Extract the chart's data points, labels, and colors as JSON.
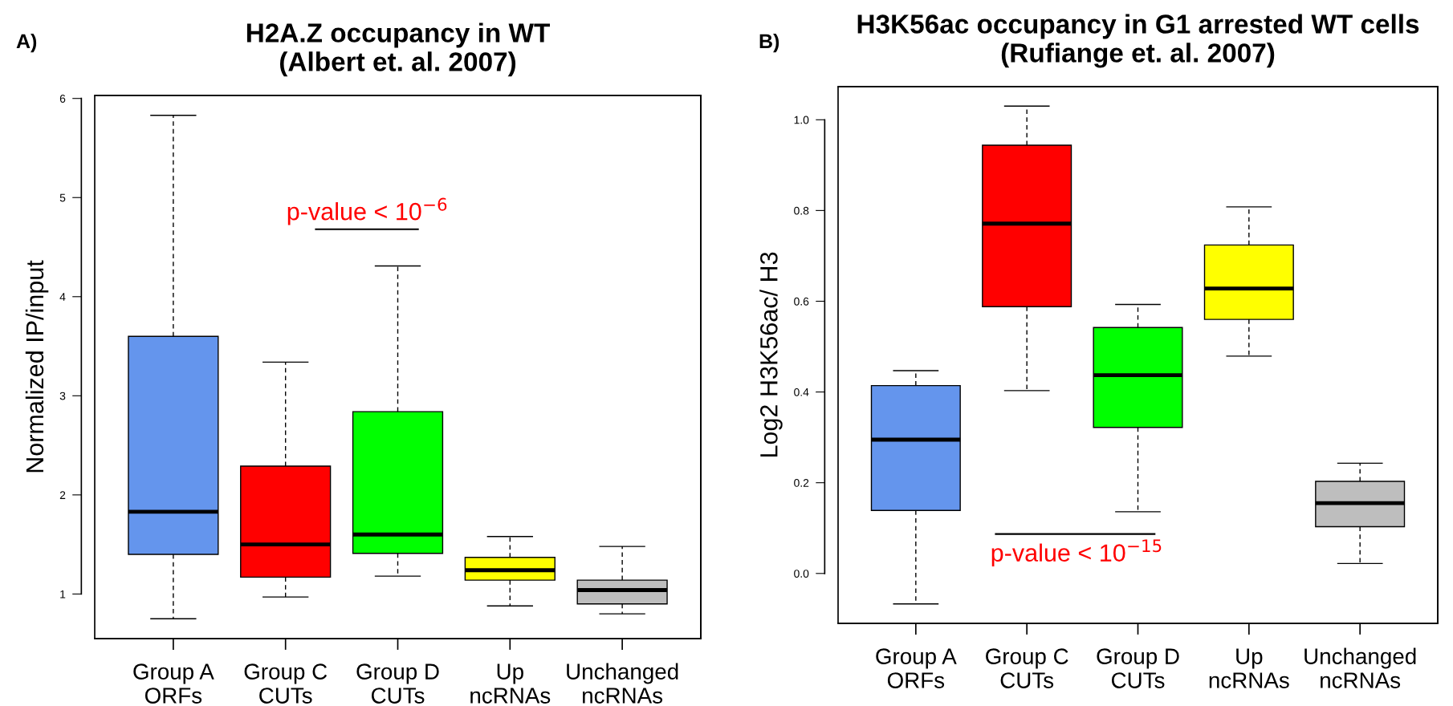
{
  "chart_data": [
    {
      "type": "box",
      "title": "H2A.Z occupancy in WT\n(Albert et. al. 2007)",
      "ylabel": "Normalized IP/input",
      "categories": [
        "Group A\nORFs",
        "Group C\nCUTs",
        "Group D\nCUTs",
        "Up\nncRNAs",
        "Unchanged\nncRNAs"
      ],
      "colors": [
        "#6495ed",
        "#ff0000",
        "#00ff00",
        "#ffff00",
        "#bebebe"
      ],
      "boxes": [
        {
          "low": 0.75,
          "q1": 1.4,
          "median": 1.83,
          "q3": 3.6,
          "high": 5.83
        },
        {
          "low": 0.97,
          "q1": 1.17,
          "median": 1.5,
          "q3": 2.29,
          "high": 3.34
        },
        {
          "low": 1.18,
          "q1": 1.41,
          "median": 1.6,
          "q3": 2.84,
          "high": 4.31
        },
        {
          "low": 0.88,
          "q1": 1.14,
          "median": 1.24,
          "q3": 1.37,
          "high": 1.58
        },
        {
          "low": 0.8,
          "q1": 0.9,
          "median": 1.04,
          "q3": 1.14,
          "high": 1.48
        }
      ],
      "ylim": [
        0.55,
        6.03
      ],
      "yticks": [
        1,
        2,
        3,
        4,
        5,
        6
      ],
      "annotations": [
        "A)",
        "p-value < 10$^{−6}$"
      ]
    },
    {
      "type": "box",
      "title": "H3K56ac occupancy in G1 arrested WT cells\n(Rufiange et. al. 2007)",
      "ylabel": "Log2 H3K56ac/ H3",
      "categories": [
        "Group A\nORFs",
        "Group C\nCUTs",
        "Group D\nCUTs",
        "Up\nncRNAs",
        "Unchanged\nncRNAs"
      ],
      "colors": [
        "#6495ed",
        "#ff0000",
        "#00ff00",
        "#ffff00",
        "#bebebe"
      ],
      "boxes": [
        {
          "low": -0.067,
          "q1": 0.139,
          "median": 0.295,
          "q3": 0.414,
          "high": 0.447
        },
        {
          "low": 0.403,
          "q1": 0.588,
          "median": 0.771,
          "q3": 0.944,
          "high": 1.03
        },
        {
          "low": 0.136,
          "q1": 0.322,
          "median": 0.437,
          "q3": 0.542,
          "high": 0.593
        },
        {
          "low": 0.479,
          "q1": 0.56,
          "median": 0.628,
          "q3": 0.724,
          "high": 0.808
        },
        {
          "low": 0.022,
          "q1": 0.103,
          "median": 0.155,
          "q3": 0.203,
          "high": 0.243
        }
      ],
      "ylim": [
        -0.11,
        1.073
      ],
      "yticks": [
        {
          "value": 0,
          "label": "0.0"
        },
        0.2,
        0.4,
        0.6,
        0.8,
        {
          "value": 1,
          "label": "1.0"
        }
      ],
      "annotations": [
        "B)",
        "p-value < 10$^{−15}$"
      ]
    }
  ]
}
